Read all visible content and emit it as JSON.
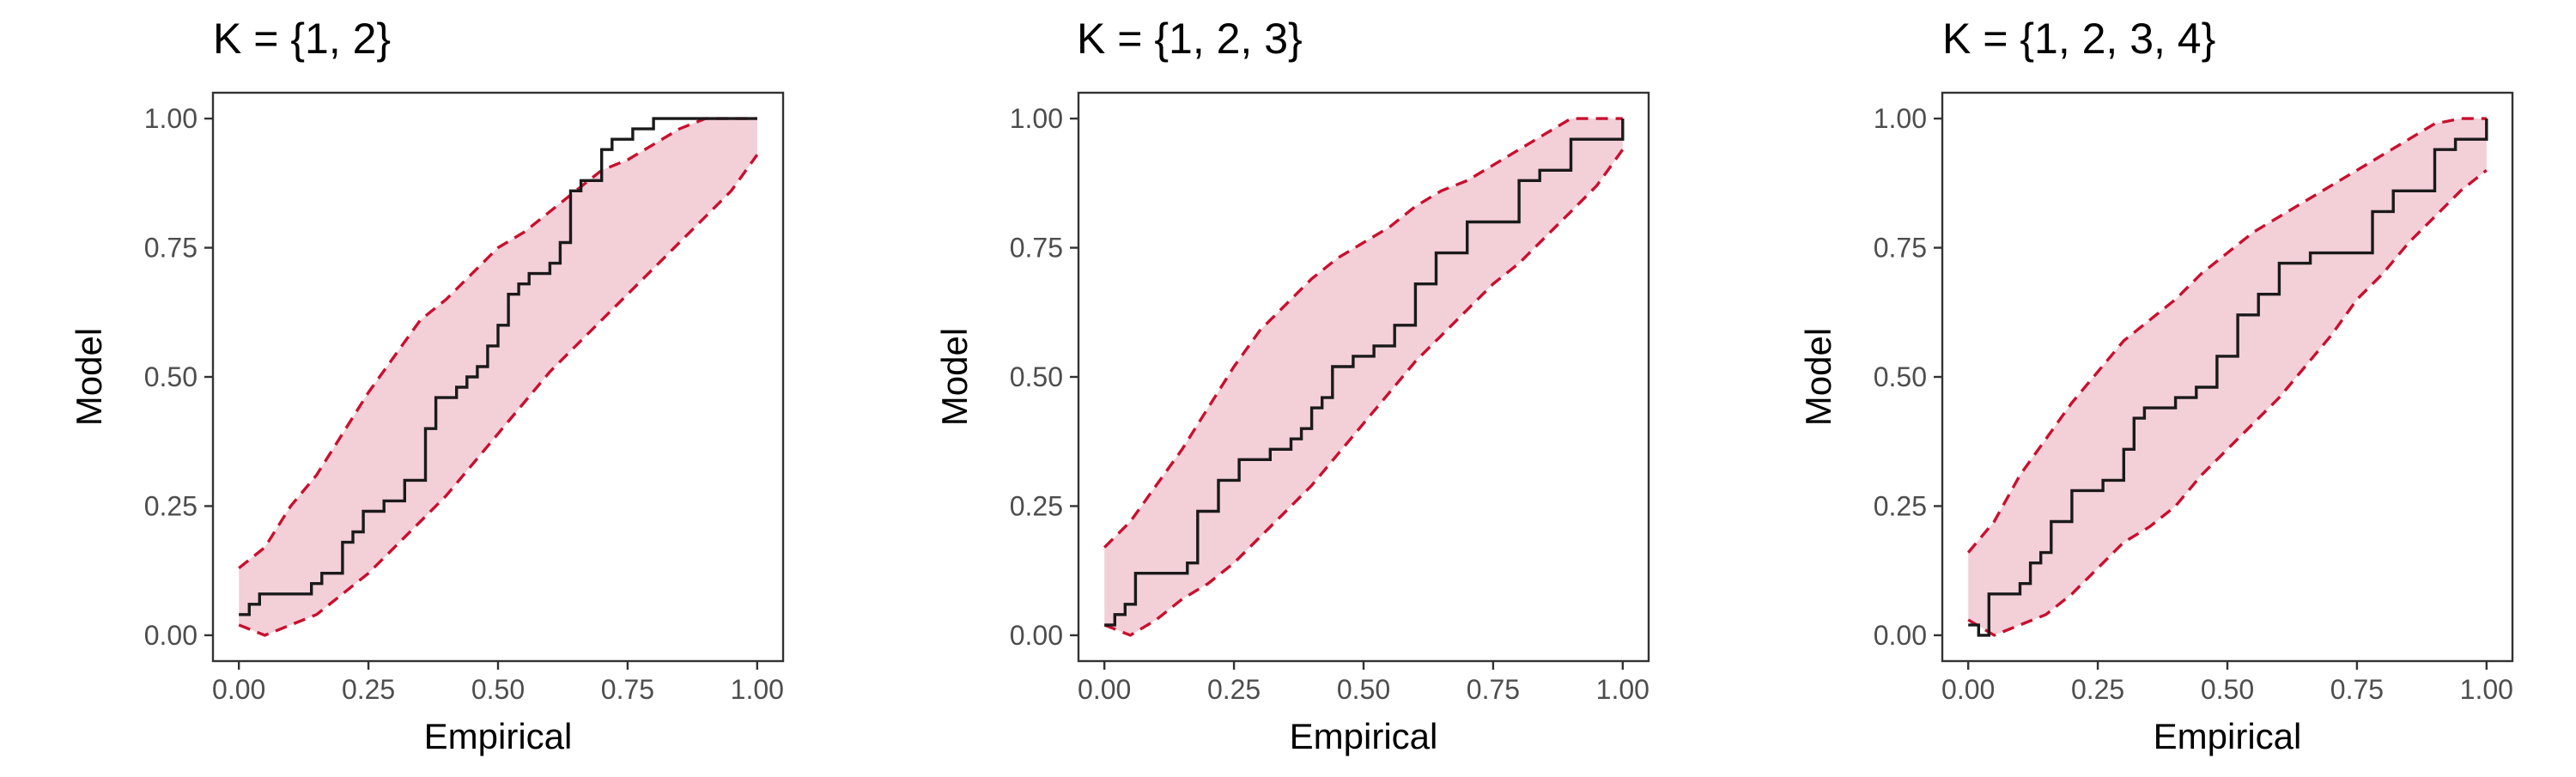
{
  "chart_data": [
    {
      "type": "line",
      "title": "K = {1, 2}",
      "xlabel": "Empirical",
      "ylabel": "Model",
      "xlim": [
        0,
        1
      ],
      "ylim": [
        0,
        1
      ],
      "x_ticks": [
        "0.00",
        "0.25",
        "0.50",
        "0.75",
        "1.00"
      ],
      "y_ticks": [
        "0.00",
        "0.25",
        "0.50",
        "0.75",
        "1.00"
      ],
      "grid": false,
      "colors": {
        "band_fill": "#f3cfd8",
        "band_edge": "#c8102e",
        "line": "#1a1a1a"
      },
      "series": [
        {
          "style": "step",
          "x": [
            0,
            0.02,
            0.04,
            0.14,
            0.16,
            0.2,
            0.22,
            0.24,
            0.28,
            0.32,
            0.36,
            0.38,
            0.42,
            0.44,
            0.46,
            0.48,
            0.5,
            0.52,
            0.54,
            0.56,
            0.6,
            0.62,
            0.64,
            0.66,
            0.7,
            0.72,
            0.76,
            0.8,
            0.84,
            0.88,
            0.9,
            0.92,
            0.94,
            1.0
          ],
          "y": [
            0.04,
            0.06,
            0.08,
            0.1,
            0.12,
            0.18,
            0.2,
            0.24,
            0.26,
            0.3,
            0.4,
            0.46,
            0.48,
            0.5,
            0.52,
            0.56,
            0.6,
            0.66,
            0.68,
            0.7,
            0.72,
            0.76,
            0.86,
            0.88,
            0.94,
            0.96,
            0.98,
            1.0,
            1.0,
            1.0,
            1.0,
            1.0,
            1.0,
            1.0
          ]
        },
        {
          "style": "dashed-upper",
          "x": [
            0,
            0.05,
            0.1,
            0.15,
            0.2,
            0.25,
            0.3,
            0.35,
            0.4,
            0.45,
            0.5,
            0.55,
            0.6,
            0.65,
            0.7,
            0.75,
            0.8,
            0.85,
            0.9,
            0.95,
            1.0
          ],
          "y": [
            0.13,
            0.17,
            0.25,
            0.31,
            0.39,
            0.47,
            0.54,
            0.61,
            0.65,
            0.7,
            0.75,
            0.78,
            0.82,
            0.86,
            0.9,
            0.92,
            0.95,
            0.98,
            1.0,
            1.0,
            1.0
          ]
        },
        {
          "style": "dashed-lower",
          "x": [
            0,
            0.05,
            0.1,
            0.15,
            0.2,
            0.25,
            0.3,
            0.35,
            0.4,
            0.45,
            0.5,
            0.55,
            0.6,
            0.65,
            0.7,
            0.75,
            0.8,
            0.85,
            0.9,
            0.95,
            1.0
          ],
          "y": [
            0.02,
            0.0,
            0.02,
            0.04,
            0.08,
            0.12,
            0.17,
            0.22,
            0.27,
            0.33,
            0.39,
            0.45,
            0.51,
            0.56,
            0.61,
            0.66,
            0.71,
            0.76,
            0.81,
            0.86,
            0.93
          ]
        }
      ]
    },
    {
      "type": "line",
      "title": "K = {1, 2, 3}",
      "xlabel": "Empirical",
      "ylabel": "Model",
      "xlim": [
        0,
        1
      ],
      "ylim": [
        0,
        1
      ],
      "x_ticks": [
        "0.00",
        "0.25",
        "0.50",
        "0.75",
        "1.00"
      ],
      "y_ticks": [
        "0.00",
        "0.25",
        "0.50",
        "0.75",
        "1.00"
      ],
      "grid": false,
      "colors": {
        "band_fill": "#f3cfd8",
        "band_edge": "#c8102e",
        "line": "#1a1a1a"
      },
      "series": [
        {
          "style": "step",
          "x": [
            0,
            0.02,
            0.04,
            0.06,
            0.16,
            0.18,
            0.22,
            0.26,
            0.32,
            0.36,
            0.38,
            0.4,
            0.42,
            0.44,
            0.48,
            0.52,
            0.56,
            0.6,
            0.64,
            0.7,
            0.8,
            0.84,
            0.9,
            1.0
          ],
          "y": [
            0.02,
            0.04,
            0.06,
            0.12,
            0.14,
            0.24,
            0.3,
            0.34,
            0.36,
            0.38,
            0.4,
            0.44,
            0.46,
            0.52,
            0.54,
            0.56,
            0.6,
            0.68,
            0.74,
            0.8,
            0.88,
            0.9,
            0.96,
            1.0
          ]
        },
        {
          "style": "dashed-upper",
          "x": [
            0,
            0.05,
            0.1,
            0.15,
            0.2,
            0.25,
            0.3,
            0.35,
            0.4,
            0.45,
            0.5,
            0.55,
            0.6,
            0.65,
            0.7,
            0.75,
            0.8,
            0.85,
            0.9,
            0.95,
            1.0
          ],
          "y": [
            0.17,
            0.22,
            0.29,
            0.36,
            0.44,
            0.52,
            0.59,
            0.64,
            0.69,
            0.73,
            0.76,
            0.79,
            0.83,
            0.86,
            0.88,
            0.91,
            0.94,
            0.97,
            1.0,
            1.0,
            1.0
          ]
        },
        {
          "style": "dashed-lower",
          "x": [
            0,
            0.05,
            0.1,
            0.15,
            0.2,
            0.25,
            0.3,
            0.35,
            0.4,
            0.45,
            0.5,
            0.55,
            0.6,
            0.65,
            0.7,
            0.75,
            0.8,
            0.85,
            0.9,
            0.95,
            1.0
          ],
          "y": [
            0.02,
            0.0,
            0.03,
            0.07,
            0.1,
            0.14,
            0.19,
            0.24,
            0.29,
            0.35,
            0.41,
            0.47,
            0.53,
            0.58,
            0.63,
            0.68,
            0.72,
            0.77,
            0.82,
            0.87,
            0.94
          ]
        }
      ]
    },
    {
      "type": "line",
      "title": "K = {1, 2, 3, 4}",
      "xlabel": "Empirical",
      "ylabel": "Model",
      "xlim": [
        0,
        1
      ],
      "ylim": [
        0,
        1
      ],
      "x_ticks": [
        "0.00",
        "0.25",
        "0.50",
        "0.75",
        "1.00"
      ],
      "y_ticks": [
        "0.00",
        "0.25",
        "0.50",
        "0.75",
        "1.00"
      ],
      "grid": false,
      "colors": {
        "band_fill": "#f3cfd8",
        "band_edge": "#c8102e",
        "line": "#1a1a1a"
      },
      "series": [
        {
          "style": "step",
          "x": [
            0,
            0.02,
            0.04,
            0.1,
            0.12,
            0.14,
            0.16,
            0.2,
            0.26,
            0.3,
            0.32,
            0.34,
            0.36,
            0.4,
            0.44,
            0.48,
            0.52,
            0.56,
            0.6,
            0.66,
            0.72,
            0.78,
            0.82,
            0.86,
            0.9,
            0.94,
            1.0
          ],
          "y": [
            0.02,
            0.0,
            0.08,
            0.1,
            0.14,
            0.16,
            0.22,
            0.28,
            0.3,
            0.36,
            0.42,
            0.44,
            0.44,
            0.46,
            0.48,
            0.54,
            0.62,
            0.66,
            0.72,
            0.74,
            0.74,
            0.82,
            0.86,
            0.86,
            0.94,
            0.96,
            1.0
          ]
        },
        {
          "style": "dashed-upper",
          "x": [
            0,
            0.05,
            0.1,
            0.15,
            0.2,
            0.25,
            0.3,
            0.35,
            0.4,
            0.45,
            0.5,
            0.55,
            0.6,
            0.65,
            0.7,
            0.75,
            0.8,
            0.85,
            0.9,
            0.95,
            1.0
          ],
          "y": [
            0.16,
            0.22,
            0.31,
            0.38,
            0.45,
            0.51,
            0.57,
            0.61,
            0.65,
            0.7,
            0.74,
            0.78,
            0.81,
            0.84,
            0.87,
            0.9,
            0.93,
            0.96,
            0.99,
            1.0,
            1.0
          ]
        },
        {
          "style": "dashed-lower",
          "x": [
            0,
            0.05,
            0.1,
            0.15,
            0.2,
            0.25,
            0.3,
            0.35,
            0.4,
            0.45,
            0.5,
            0.55,
            0.6,
            0.65,
            0.7,
            0.75,
            0.8,
            0.85,
            0.9,
            0.95,
            1.0
          ],
          "y": [
            0.03,
            0.0,
            0.02,
            0.04,
            0.08,
            0.13,
            0.18,
            0.21,
            0.25,
            0.31,
            0.36,
            0.41,
            0.46,
            0.52,
            0.58,
            0.65,
            0.7,
            0.76,
            0.81,
            0.86,
            0.9
          ]
        }
      ]
    }
  ]
}
